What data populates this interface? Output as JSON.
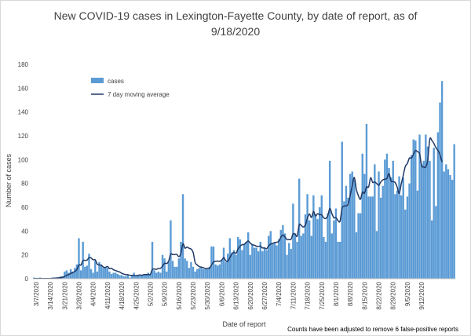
{
  "chart_data": {
    "type": "bar",
    "title_line1": "New COVID-19 cases in Lexington-Fayette County, by date of report, as of",
    "title_line2": "9/18/2020",
    "xlabel": "Date of report",
    "ylabel": "Number of cases",
    "ylim": [
      0,
      180
    ],
    "yticks": [
      0,
      20,
      40,
      60,
      80,
      100,
      120,
      140,
      160,
      180
    ],
    "x_tick_labels": [
      "3/7/2020",
      "3/14/2020",
      "3/21/2020",
      "3/28/2020",
      "4/4/2020",
      "4/11/2020",
      "4/18/2020",
      "4/25/2020",
      "5/2/2020",
      "5/9/2020",
      "5/16/2020",
      "5/23/2020",
      "5/30/2020",
      "6/6/2020",
      "6/13/2020",
      "6/20/2020",
      "6/27/2020",
      "7/4/2020",
      "7/11/2020",
      "7/18/2020",
      "7/25/2020",
      "8/1/2020",
      "8/8/2020",
      "8/15/2020",
      "8/22/2020",
      "8/29/2020",
      "9/5/2020",
      "9/12/2020"
    ],
    "start_date": "3/6/2020",
    "legend": {
      "bar_label": "cases",
      "line_label": "7 day moving average",
      "placement": "top-left"
    },
    "colors": {
      "bars": "#5b9bd5",
      "line": "#203864"
    },
    "series": [
      {
        "name": "cases",
        "values": [
          1,
          0,
          0,
          1,
          0,
          0,
          0,
          0,
          0,
          1,
          1,
          1,
          1,
          2,
          2,
          6,
          7,
          5,
          8,
          6,
          9,
          12,
          34,
          7,
          31,
          10,
          11,
          21,
          8,
          5,
          15,
          6,
          14,
          11,
          9,
          10,
          9,
          6,
          4,
          5,
          5,
          4,
          3,
          3,
          2,
          2,
          3,
          1,
          3,
          5,
          2,
          3,
          3,
          3,
          3,
          4,
          5,
          4,
          31,
          7,
          5,
          6,
          5,
          20,
          17,
          6,
          14,
          49,
          15,
          10,
          10,
          17,
          31,
          71,
          17,
          15,
          9,
          14,
          10,
          6,
          8,
          9,
          10,
          8,
          8,
          8,
          10,
          27,
          27,
          12,
          11,
          12,
          16,
          26,
          14,
          21,
          34,
          22,
          24,
          20,
          35,
          33,
          24,
          29,
          31,
          39,
          20,
          29,
          26,
          26,
          23,
          31,
          23,
          26,
          24,
          36,
          40,
          30,
          30,
          28,
          33,
          41,
          45,
          38,
          20,
          30,
          25,
          63,
          38,
          31,
          84,
          36,
          38,
          54,
          71,
          49,
          36,
          70,
          54,
          50,
          60,
          70,
          35,
          31,
          55,
          99,
          38,
          49,
          59,
          31,
          31,
          115,
          65,
          78,
          68,
          88,
          90,
          83,
          39,
          55,
          55,
          105,
          88,
          130,
          69,
          69,
          69,
          96,
          40,
          90,
          68,
          78,
          100,
          105,
          93,
          85,
          99,
          71,
          74,
          86,
          70,
          85,
          58,
          69,
          80,
          104,
          117,
          116,
          74,
          121,
          96,
          99,
          121,
          111,
          99,
          49,
          110,
          61,
          123,
          148,
          166,
          90,
          96,
          92,
          87,
          83,
          113
        ]
      },
      {
        "name": "7 day moving average",
        "values": [
          0.14,
          0.14,
          0.14,
          0.14,
          0.14,
          0.14,
          0.14,
          0.14,
          0.14,
          0.29,
          0.43,
          0.57,
          0.71,
          0.86,
          1.14,
          1.86,
          2.86,
          3.43,
          4.43,
          5.14,
          6.14,
          7.57,
          11.57,
          11.43,
          15.14,
          15.43,
          15.57,
          17.71,
          17.43,
          15.86,
          15.86,
          12.29,
          11.43,
          11.43,
          9.71,
          9.43,
          10.29,
          8.43,
          8.71,
          7.43,
          6.86,
          6.14,
          5.57,
          4.57,
          3.86,
          3.43,
          3.29,
          2.86,
          2.71,
          2.71,
          2.57,
          2.86,
          3.14,
          2.86,
          3.43,
          3.43,
          3.57,
          3.57,
          7.71,
          8.14,
          7.86,
          8.57,
          8.71,
          10.57,
          13.0,
          12.71,
          14.71,
          20.71,
          20.29,
          20.29,
          20.43,
          18.57,
          21.0,
          29.29,
          25.71,
          26.57,
          25.57,
          24.86,
          22.14,
          13.57,
          11.57,
          10.14,
          9.71,
          9.29,
          8.43,
          8.71,
          8.71,
          11.43,
          14.14,
          14.57,
          14.86,
          14.57,
          15.57,
          17.71,
          15.14,
          14.57,
          17.71,
          20.71,
          22.14,
          21.29,
          24.86,
          27.29,
          28.57,
          28.86,
          30.29,
          31.71,
          29.86,
          28.57,
          28.14,
          27.29,
          27.14,
          27.29,
          25.86,
          25.86,
          25.14,
          27.57,
          29.14,
          29.57,
          30.43,
          30.57,
          31.43,
          34.86,
          36.71,
          35.14,
          32.86,
          32.86,
          33.14,
          37.57,
          37.43,
          35.71,
          45.29,
          44.71,
          43.43,
          45.0,
          50.86,
          54.29,
          51.43,
          56.43,
          52.71,
          54.57,
          53.71,
          53.71,
          51.14,
          50.57,
          52.86,
          59.0,
          54.71,
          51.14,
          51.29,
          48.86,
          48.29,
          59.14,
          61.0,
          61.14,
          62.71,
          70.14,
          78.29,
          85.0,
          74.86,
          69.71,
          66.71,
          72.71,
          71.71,
          77.14,
          77.0,
          84.71,
          80.86,
          81.29,
          79.86,
          78.43,
          81.29,
          83.0,
          83.57,
          84.29,
          88.29,
          82.14,
          81.57,
          80.86,
          77.0,
          71.57,
          79.57,
          86.86,
          94.29,
          96.71,
          101.29,
          101.29,
          104.43,
          107.71,
          106.57,
          105.0,
          94.86,
          93.86,
          93.71,
          99.71,
          117.14,
          116.14,
          113.57,
          110.0,
          107.71,
          104.0,
          98.0
        ]
      }
    ]
  },
  "footnote": "Counts have been adjusted to remove 6 false-positive reports"
}
